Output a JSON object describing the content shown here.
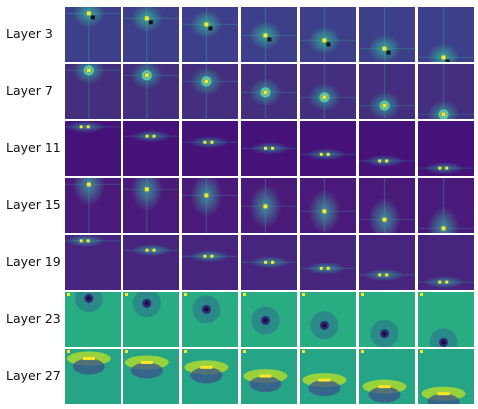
{
  "figure": {
    "row_labels": [
      "Layer 3",
      "Layer 7",
      "Layer 11",
      "Layer 15",
      "Layer 19",
      "Layer 23",
      "Layer 27"
    ],
    "columns": 7,
    "colormap": "viridis"
  },
  "rows": [
    {
      "label": "Layer 3",
      "style": "dipole",
      "bg": "#3d3f8a",
      "haze": "#35b79a"
    },
    {
      "label": "Layer 7",
      "style": "ring",
      "bg": "#442f7e",
      "haze": "#2fa7a0"
    },
    {
      "label": "Layer 11",
      "style": "pair",
      "bg": "#45127a",
      "haze": "#2f8f9e"
    },
    {
      "label": "Layer 15",
      "style": "vertical",
      "bg": "#4a1a7a",
      "haze": "#3aa3a0"
    },
    {
      "label": "Layer 19",
      "style": "pair",
      "bg": "#47257e",
      "haze": "#2f9fa2"
    },
    {
      "label": "Layer 23",
      "style": "dark-dot",
      "bg": "#27ad81",
      "haze": "#2c8d8c"
    },
    {
      "label": "Layer 27",
      "style": "bright-band",
      "bg": "#25a585",
      "haze": "#57c666"
    }
  ]
}
